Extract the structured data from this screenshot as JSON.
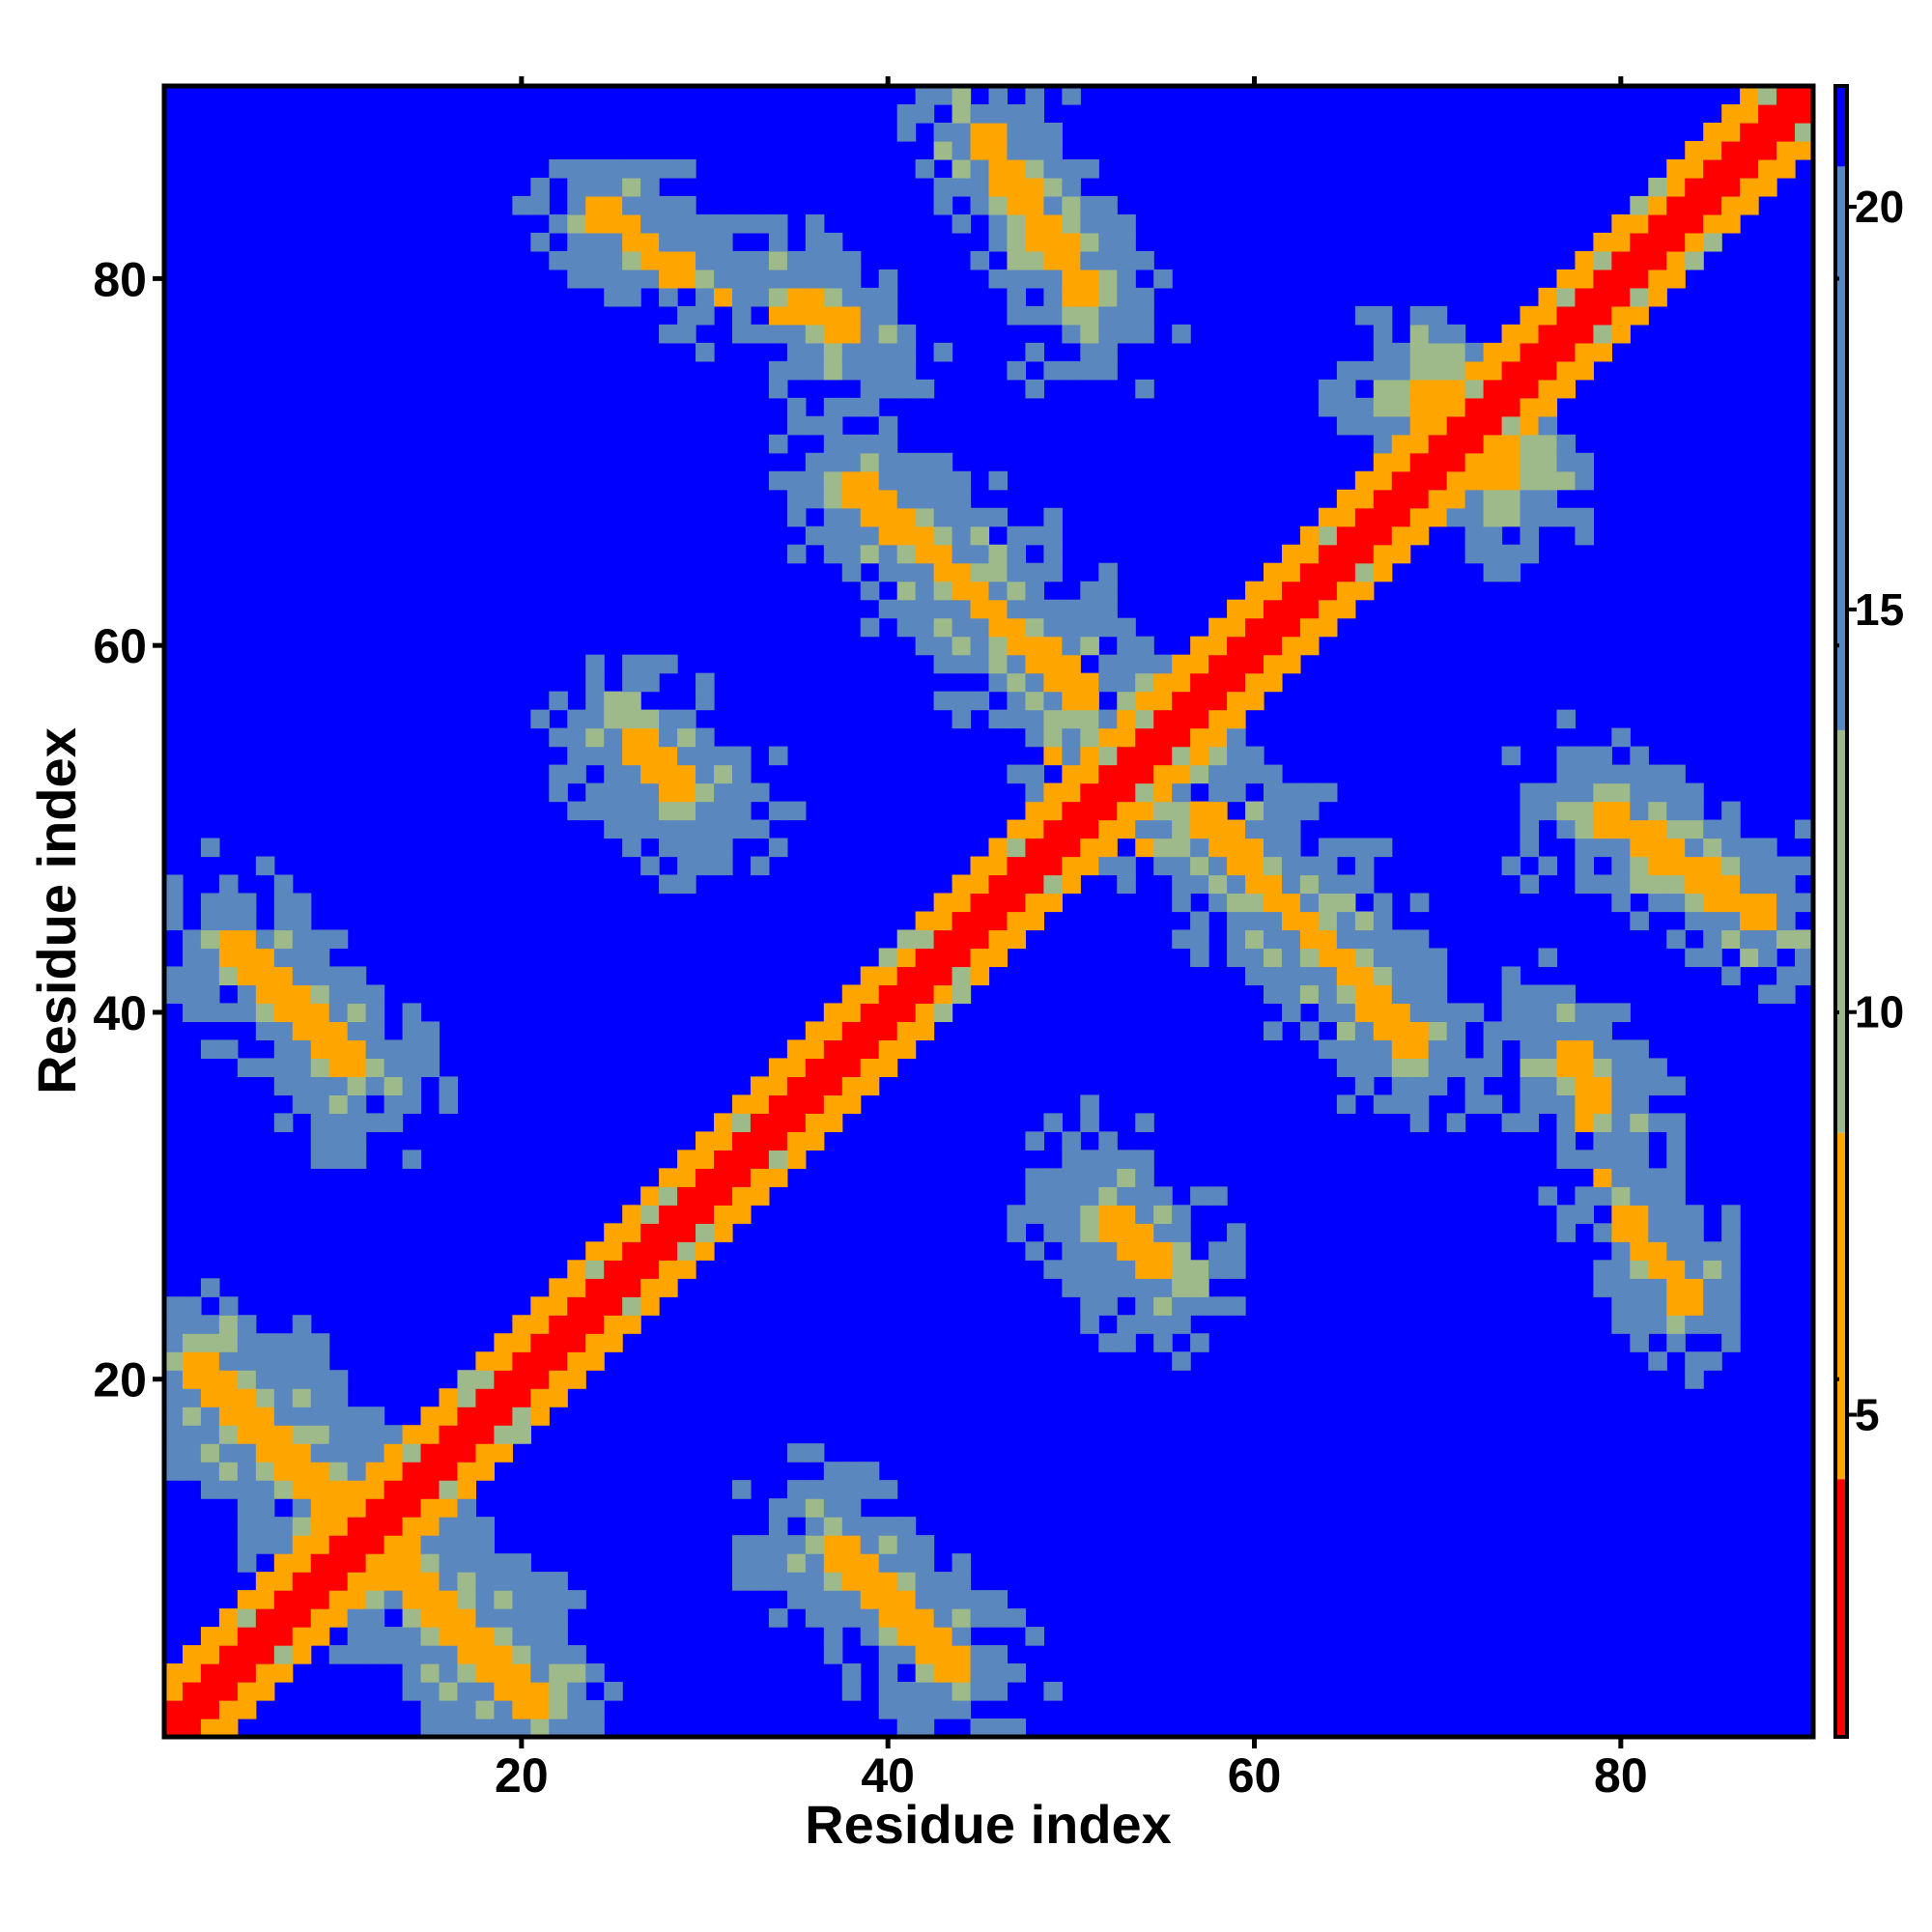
{
  "chart_data": {
    "type": "heatmap",
    "title": "",
    "xlabel": "Residue index",
    "ylabel": "Residue index",
    "n_residues": 90,
    "xlim": [
      1,
      90
    ],
    "ylim": [
      1,
      90
    ],
    "x_ticks": [
      20,
      40,
      60,
      80
    ],
    "y_ticks": [
      20,
      40,
      60,
      80
    ],
    "colorbar": {
      "ticks": [
        5,
        10,
        15,
        20
      ],
      "range": [
        1,
        21.5
      ],
      "bands": [
        {
          "from": 1,
          "to": 4.2,
          "color": "#ff0000"
        },
        {
          "from": 4.2,
          "to": 8.5,
          "color": "#ffa500"
        },
        {
          "from": 8.5,
          "to": 13.5,
          "color": "#9fba8a"
        },
        {
          "from": 13.5,
          "to": 20.5,
          "color": "#5b87bf"
        },
        {
          "from": 20.5,
          "to": 21.5,
          "color": "#0000ff"
        }
      ]
    },
    "description": "Symmetric residue-residue distance map; red main diagonal (distance < ~4), orange contact bands (secondary structure contacts), green/steel-blue intermediate distances, blue background (> ~20).",
    "contact_segments": [
      {
        "from": [
          2,
          21
        ],
        "to": [
          10,
          13
        ]
      },
      {
        "from": [
          4,
          44
        ],
        "to": [
          11,
          37
        ]
      },
      {
        "from": [
          13,
          9
        ],
        "to": [
          22,
          2
        ]
      },
      {
        "from": [
          36,
          9
        ],
        "to": [
          44,
          2
        ]
      },
      {
        "from": [
          24,
          84
        ],
        "to": [
          29,
          80
        ]
      },
      {
        "from": [
          26,
          55
        ],
        "to": [
          29,
          52
        ]
      },
      {
        "from": [
          35,
          79
        ],
        "to": [
          38,
          77
        ]
      },
      {
        "from": [
          38,
          69
        ],
        "to": [
          51,
          57
        ]
      },
      {
        "from": [
          45,
          88
        ],
        "to": [
          51,
          79
        ]
      },
      {
        "from": [
          53,
          52
        ],
        "to": [
          68,
          39
        ]
      },
      {
        "from": [
          53,
          28
        ],
        "to": [
          55,
          23
        ]
      },
      {
        "from": [
          80,
          55
        ],
        "to": [
          88,
          47
        ]
      },
      {
        "from": [
          80,
          28
        ],
        "to": [
          84,
          23
        ]
      },
      {
        "from": [
          69,
          74
        ],
        "to": [
          75,
          68
        ]
      },
      {
        "from": [
          78,
          39
        ],
        "to": [
          80,
          37
        ]
      }
    ]
  },
  "colors": {
    "red": "#ff0000",
    "orange": "#ffa500",
    "green": "#9fba8a",
    "steel": "#5b87bf",
    "blue": "#0000ff"
  }
}
